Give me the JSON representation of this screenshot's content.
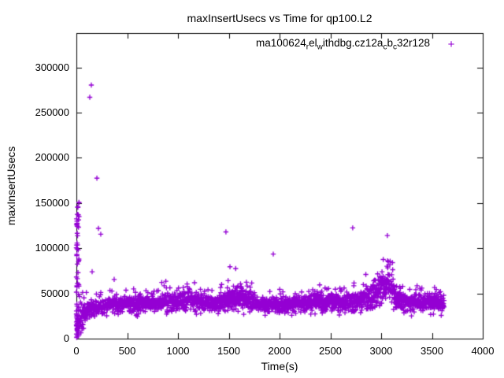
{
  "window": {
    "background": "#ffffff",
    "kind": "gnuplot-figure"
  },
  "chart_data": {
    "type": "scatter",
    "title": "maxInsertUsecs vs Time for qp100.L2",
    "xlabel": "Time(s)",
    "ylabel": "maxInsertUsecs",
    "xlim": [
      0,
      4000
    ],
    "ylim": [
      0,
      338000
    ],
    "xticks": [
      0,
      500,
      1000,
      1500,
      2000,
      2500,
      3000,
      3500,
      4000
    ],
    "yticks": [
      0,
      50000,
      100000,
      150000,
      200000,
      250000,
      300000
    ],
    "grid": false,
    "legend_position": "top-right-inside",
    "marker": "plus",
    "marker_color": "#9400d3",
    "axis_color": "#000000",
    "text_color": "#000000",
    "series": [
      {
        "name": "ma100624_rel_withdbg.cz12a_cb_c32r128",
        "label_segments": [
          {
            "text": "ma100624",
            "sub": false
          },
          {
            "text": "r",
            "sub": true
          },
          {
            "text": "el",
            "sub": false
          },
          {
            "text": "w",
            "sub": true
          },
          {
            "text": "ithdbg.cz12a",
            "sub": false
          },
          {
            "text": "c",
            "sub": true
          },
          {
            "text": "b",
            "sub": false
          },
          {
            "text": "c",
            "sub": true
          },
          {
            "text": "32r128",
            "sub": false
          }
        ],
        "time_range_s": [
          0,
          3620
        ],
        "description": "dense noisy band of per-interval max insert latencies (~28000-62000 usecs) with a startup transient column at t=0-26s reaching 151000 and sparse high outliers",
        "startup_spike": {
          "t_range": [
            0,
            26
          ],
          "value_range": [
            800,
            151000
          ],
          "count": 60,
          "extra_low_count": 25,
          "extra_low_value_max": 30000
        },
        "band_envelope_t_lo_mid_hi": [
          [
            30,
            3000,
            20000,
            58000
          ],
          [
            70,
            12000,
            27000,
            58000
          ],
          [
            120,
            22000,
            32000,
            56000
          ],
          [
            180,
            27000,
            34000,
            52000
          ],
          [
            250,
            29000,
            36000,
            52000
          ],
          [
            350,
            30000,
            37500,
            54000
          ],
          [
            450,
            30000,
            38000,
            53000
          ],
          [
            550,
            30500,
            39000,
            56000
          ],
          [
            620,
            31000,
            40500,
            62000
          ],
          [
            700,
            30000,
            38500,
            54000
          ],
          [
            800,
            30500,
            39500,
            57000
          ],
          [
            880,
            31500,
            42000,
            69000
          ],
          [
            950,
            31000,
            40000,
            58000
          ],
          [
            1030,
            31500,
            41000,
            60000
          ],
          [
            1090,
            32500,
            43000,
            70000
          ],
          [
            1150,
            32000,
            42000,
            64000
          ],
          [
            1250,
            30500,
            39000,
            56000
          ],
          [
            1350,
            30000,
            38500,
            55000
          ],
          [
            1450,
            31500,
            41500,
            62000
          ],
          [
            1550,
            33000,
            45000,
            68000
          ],
          [
            1650,
            33500,
            45500,
            70000
          ],
          [
            1720,
            32500,
            43000,
            64000
          ],
          [
            1800,
            30500,
            38500,
            53000
          ],
          [
            1900,
            30000,
            37500,
            52000
          ],
          [
            2000,
            30000,
            38000,
            57000
          ],
          [
            2100,
            30000,
            37500,
            55000
          ],
          [
            2200,
            30500,
            38500,
            56000
          ],
          [
            2300,
            31000,
            39500,
            57000
          ],
          [
            2400,
            31500,
            41000,
            61000
          ],
          [
            2500,
            32000,
            42000,
            63000
          ],
          [
            2600,
            31000,
            39500,
            56000
          ],
          [
            2700,
            31500,
            41000,
            64000
          ],
          [
            2800,
            32500,
            43500,
            69000
          ],
          [
            2900,
            33500,
            45500,
            74000
          ],
          [
            2980,
            37000,
            52000,
            86000
          ],
          [
            3040,
            42000,
            61000,
            96000
          ],
          [
            3090,
            41000,
            58000,
            93000
          ],
          [
            3150,
            35000,
            46000,
            74000
          ],
          [
            3230,
            31000,
            39500,
            56000
          ],
          [
            3330,
            31500,
            41000,
            61000
          ],
          [
            3430,
            31000,
            39500,
            57000
          ],
          [
            3530,
            31500,
            40500,
            60000
          ],
          [
            3620,
            31000,
            39500,
            55000
          ]
        ],
        "outliers_t_value": [
          [
            0,
            100500
          ],
          [
            4,
            127000
          ],
          [
            132,
            267000
          ],
          [
            147,
            280500
          ],
          [
            155,
            74000
          ],
          [
            202,
            177500
          ],
          [
            217,
            122000
          ],
          [
            240,
            115500
          ],
          [
            372,
            65500
          ],
          [
            1472,
            118000
          ],
          [
            1512,
            79500
          ],
          [
            1568,
            77500
          ],
          [
            1938,
            93500
          ],
          [
            2720,
            122500
          ],
          [
            3061,
            114000
          ]
        ],
        "synth": {
          "seed": 1337,
          "count": 2400,
          "upper_tail_p": 0.15,
          "upper_tail_pow": 1.7,
          "lower_tail_p": 0.04
        }
      }
    ]
  }
}
